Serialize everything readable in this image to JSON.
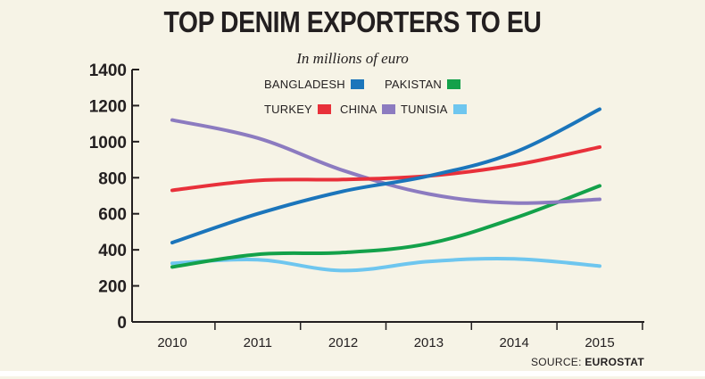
{
  "chart_data": {
    "type": "line",
    "title": "TOP DENIM EXPORTERS TO EU",
    "subtitle": "In millions of euro",
    "xlabel": "",
    "ylabel": "",
    "x": [
      "2010",
      "2011",
      "2012",
      "2013",
      "2014",
      "2015"
    ],
    "ylim": [
      0,
      1400
    ],
    "yticks": [
      0,
      200,
      400,
      600,
      800,
      1000,
      1200,
      1400
    ],
    "grid": false,
    "legend_position": "top-center",
    "series": [
      {
        "name": "BANGLADESH",
        "color": "#1b75bb",
        "values": [
          440,
          600,
          725,
          810,
          940,
          1180
        ]
      },
      {
        "name": "PAKISTAN",
        "color": "#13a14a",
        "values": [
          305,
          375,
          385,
          435,
          575,
          755
        ]
      },
      {
        "name": "TURKEY",
        "color": "#e8303a",
        "values": [
          730,
          785,
          790,
          810,
          870,
          970
        ]
      },
      {
        "name": "CHINA",
        "color": "#8c7bc0",
        "values": [
          1120,
          1020,
          840,
          710,
          660,
          680
        ]
      },
      {
        "name": "TUNISIA",
        "color": "#6ec6ef",
        "values": [
          325,
          345,
          285,
          335,
          350,
          310
        ]
      }
    ]
  },
  "source": {
    "label": "SOURCE:",
    "name": "EUROSTAT"
  }
}
